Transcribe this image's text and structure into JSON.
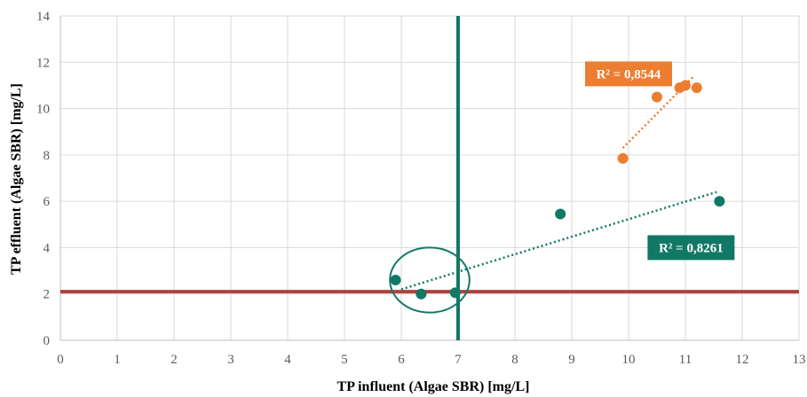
{
  "chart_data": {
    "type": "scatter",
    "xlabel": "TP influent (Algae SBR) [mg/L]",
    "ylabel": "TP effluent (Algae SBR) [mg/L]",
    "xlim": [
      0,
      13
    ],
    "ylim": [
      0,
      14
    ],
    "x_ticks": [
      "0",
      "1",
      "2",
      "3",
      "4",
      "5",
      "6",
      "7",
      "8",
      "9",
      "10",
      "11",
      "12",
      "13"
    ],
    "y_ticks": [
      "0",
      "2",
      "4",
      "6",
      "8",
      "10",
      "12",
      "14"
    ],
    "grid": true,
    "series": [
      {
        "color": "#ED7D31",
        "points": [
          [
            9.9,
            7.85
          ],
          [
            10.5,
            10.5
          ],
          [
            10.9,
            10.9
          ],
          [
            11.0,
            11.0
          ],
          [
            11.2,
            10.9
          ]
        ],
        "trendline": {
          "x": [
            9.9,
            11.15
          ],
          "y": [
            8.3,
            11.4
          ]
        },
        "r2_label": "R² = 0,8544",
        "label_anchor": [
          10.0,
          11.5
        ]
      },
      {
        "color": "#117865",
        "points": [
          [
            5.9,
            2.6
          ],
          [
            6.35,
            2.0
          ],
          [
            6.95,
            2.05
          ],
          [
            8.8,
            5.45
          ],
          [
            11.6,
            6.0
          ]
        ],
        "trendline": {
          "x": [
            6.0,
            11.55
          ],
          "y": [
            2.2,
            6.4
          ]
        },
        "r2_label": "R² = 0,8261",
        "label_anchor": [
          11.1,
          4.0
        ]
      }
    ],
    "reference_lines": {
      "vertical": {
        "x": 7.0,
        "color": "#117865"
      },
      "horizontal": {
        "y": 2.1,
        "color": "#B0413E"
      }
    },
    "highlight_ellipse": {
      "cx": 6.5,
      "cy": 2.6,
      "rx": 0.7,
      "ry": 1.4,
      "color": "#117865"
    }
  }
}
